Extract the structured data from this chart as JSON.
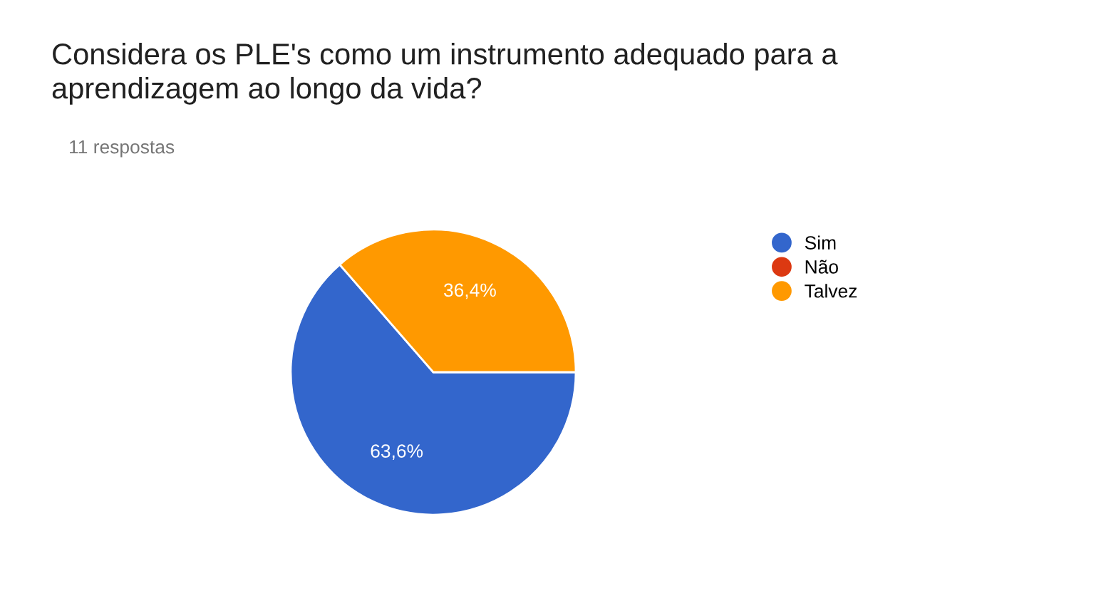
{
  "chart_data": {
    "type": "pie",
    "title": "Considera os PLE's como um instrumento adequado para a\naprendizagem ao longo da vida?",
    "subtitle": "11 respostas",
    "categories": [
      "Sim",
      "Não",
      "Talvez"
    ],
    "values": [
      63.6,
      0,
      36.4
    ],
    "colors": [
      "#3366cc",
      "#dc3912",
      "#ff9900"
    ],
    "value_labels": [
      "63,6%",
      null,
      "36,4%"
    ],
    "legend": "right"
  }
}
